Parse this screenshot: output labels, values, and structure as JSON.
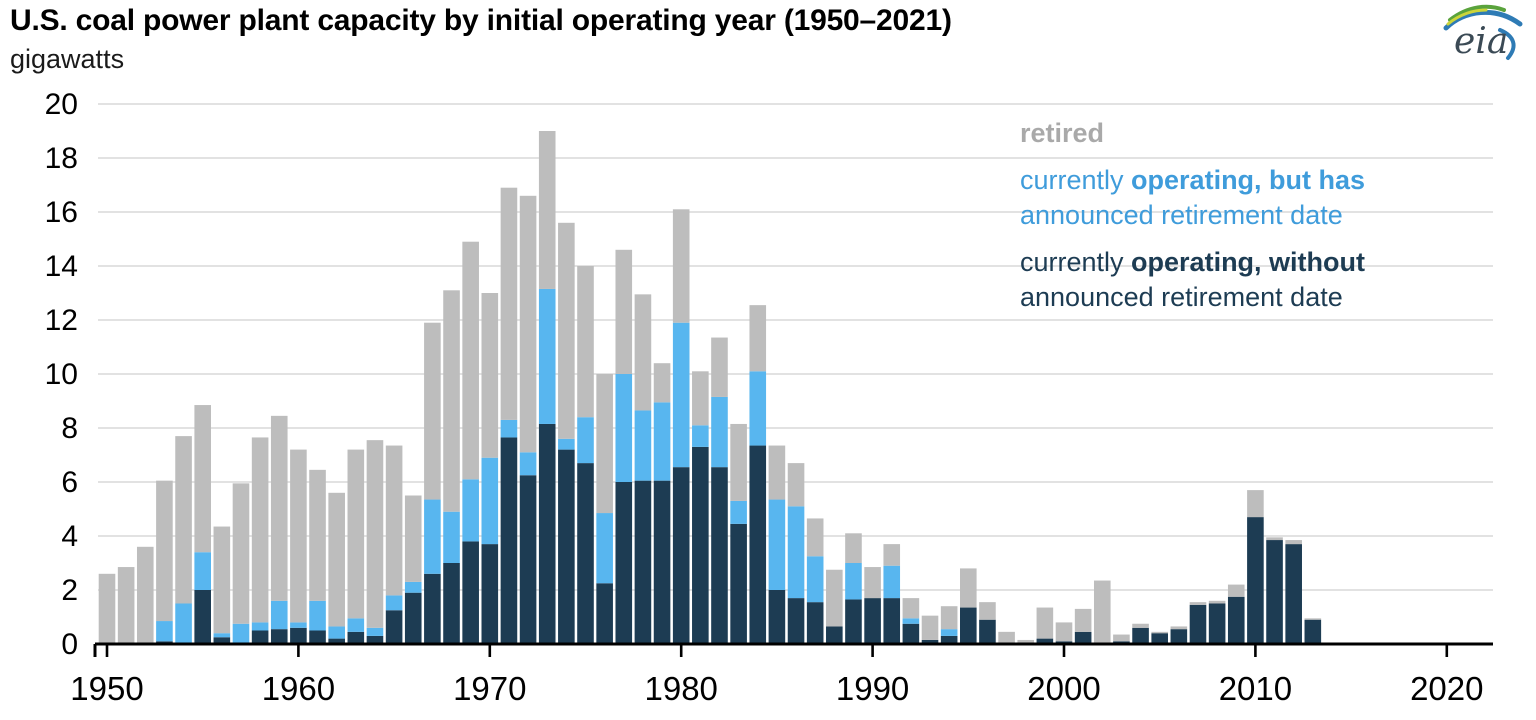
{
  "title": "U.S. coal power plant capacity by initial operating year (1950–2021)",
  "subtitle": "gigawatts",
  "logo": {
    "text": "eia"
  },
  "legend": {
    "retired": {
      "label": "retired",
      "color": "#a9a9a9"
    },
    "announced": {
      "pre": "currently ",
      "bold": "operating, but has",
      "line2": "announced retirement date",
      "color": "#3f9cdb"
    },
    "operating": {
      "pre": "currently ",
      "bold": "operating, without",
      "line2": "announced retirement date",
      "color": "#1d3c53"
    }
  },
  "colors": {
    "bar_retired": "#bdbdbd",
    "bar_announced": "#58b6ef",
    "bar_operating": "#1d3c53",
    "gridline": "#d9d9d9",
    "axis": "#000000",
    "tick_label": "#000000"
  },
  "chart_data": {
    "type": "bar",
    "stacked": true,
    "title": "U.S. coal power plant capacity by initial operating year (1950–2021)",
    "ylabel": "gigawatts",
    "xlabel": "",
    "ylim": [
      0,
      20
    ],
    "ytick_step": 2,
    "grid": true,
    "legend_position": "upper right",
    "x_ticks": [
      1950,
      1960,
      1970,
      1980,
      1990,
      2000,
      2010,
      2020
    ],
    "years": [
      1950,
      1951,
      1952,
      1953,
      1954,
      1955,
      1956,
      1957,
      1958,
      1959,
      1960,
      1961,
      1962,
      1963,
      1964,
      1965,
      1966,
      1967,
      1968,
      1969,
      1970,
      1971,
      1972,
      1973,
      1974,
      1975,
      1976,
      1977,
      1978,
      1979,
      1980,
      1981,
      1982,
      1983,
      1984,
      1985,
      1986,
      1987,
      1988,
      1989,
      1990,
      1991,
      1992,
      1993,
      1994,
      1995,
      1996,
      1997,
      1998,
      1999,
      2000,
      2001,
      2002,
      2003,
      2004,
      2005,
      2006,
      2007,
      2008,
      2009,
      2010,
      2011,
      2012,
      2013,
      2014,
      2015,
      2016,
      2017,
      2018,
      2019,
      2020,
      2021
    ],
    "series": [
      {
        "name": "currently operating, without announced retirement date",
        "key": "operating",
        "color": "#1d3c53",
        "values": [
          0,
          0,
          0,
          0.1,
          0.05,
          2.0,
          0.25,
          0.05,
          0.5,
          0.55,
          0.6,
          0.5,
          0.2,
          0.45,
          0.3,
          1.25,
          1.9,
          2.6,
          3.0,
          3.8,
          3.7,
          7.65,
          6.25,
          8.15,
          7.2,
          6.7,
          2.25,
          6.0,
          6.05,
          6.05,
          6.55,
          7.3,
          6.55,
          4.45,
          7.35,
          2.0,
          1.7,
          1.55,
          0.65,
          1.65,
          1.7,
          1.7,
          0.75,
          0.15,
          0.3,
          1.35,
          0.9,
          0.05,
          0.05,
          0.2,
          0.1,
          0.45,
          0.05,
          0.1,
          0.6,
          0.4,
          0.55,
          1.45,
          1.5,
          1.75,
          4.7,
          3.85,
          3.7,
          0.9,
          0,
          0,
          0,
          0,
          0,
          0,
          0,
          0
        ]
      },
      {
        "name": "currently operating, but has announced retirement date",
        "key": "announced",
        "color": "#58b6ef",
        "values": [
          0,
          0,
          0,
          0.75,
          1.45,
          1.4,
          0.15,
          0.7,
          0.3,
          1.05,
          0.2,
          1.1,
          0.45,
          0.5,
          0.3,
          0.55,
          0.4,
          2.75,
          1.9,
          2.3,
          3.2,
          0.65,
          0.85,
          5.0,
          0.4,
          1.7,
          2.6,
          4.0,
          2.6,
          2.9,
          5.35,
          0.8,
          2.6,
          0.85,
          2.75,
          3.35,
          3.4,
          1.7,
          0,
          1.35,
          0,
          1.2,
          0.2,
          0,
          0.25,
          0,
          0,
          0,
          0,
          0,
          0,
          0,
          0,
          0,
          0,
          0,
          0,
          0,
          0,
          0,
          0,
          0,
          0,
          0,
          0,
          0,
          0,
          0,
          0,
          0,
          0,
          0
        ]
      },
      {
        "name": "retired",
        "key": "retired",
        "color": "#bdbdbd",
        "values": [
          2.6,
          2.85,
          3.6,
          5.2,
          6.2,
          5.45,
          3.95,
          5.2,
          6.85,
          6.85,
          6.4,
          4.85,
          4.95,
          6.25,
          6.95,
          5.55,
          3.2,
          6.55,
          8.2,
          8.8,
          6.1,
          8.6,
          9.5,
          5.85,
          8.0,
          5.6,
          5.15,
          4.6,
          4.3,
          1.45,
          4.2,
          2.0,
          2.2,
          2.85,
          2.45,
          2.0,
          1.6,
          1.4,
          2.1,
          1.1,
          1.15,
          0.8,
          0.75,
          0.9,
          0.85,
          1.45,
          0.65,
          0.4,
          0.1,
          1.15,
          0.7,
          0.85,
          2.3,
          0.25,
          0.15,
          0.05,
          0.1,
          0.1,
          0.1,
          0.45,
          1.0,
          0.1,
          0.15,
          0.05,
          0,
          0,
          0,
          0,
          0,
          0,
          0,
          0
        ]
      }
    ]
  }
}
